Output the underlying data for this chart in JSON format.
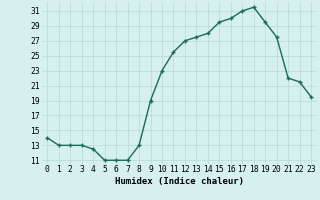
{
  "x": [
    0,
    1,
    2,
    3,
    4,
    5,
    6,
    7,
    8,
    9,
    10,
    11,
    12,
    13,
    14,
    15,
    16,
    17,
    18,
    19,
    20,
    21,
    22,
    23
  ],
  "y": [
    14,
    13,
    13,
    13,
    12.5,
    11,
    11,
    11,
    13,
    19,
    23,
    25.5,
    27,
    27.5,
    28,
    29.5,
    30,
    31,
    31.5,
    29.5,
    27.5,
    22,
    21.5,
    19.5
  ],
  "line_color": "#1a6b5a",
  "marker_color": "#1a6b5a",
  "bg_color": "#d6f0ef",
  "grid_color": "#b8d8d6",
  "xlabel": "Humidex (Indice chaleur)",
  "yticks": [
    11,
    13,
    15,
    17,
    19,
    21,
    23,
    25,
    27,
    29,
    31
  ],
  "xticks": [
    0,
    1,
    2,
    3,
    4,
    5,
    6,
    7,
    8,
    9,
    10,
    11,
    12,
    13,
    14,
    15,
    16,
    17,
    18,
    19,
    20,
    21,
    22,
    23
  ],
  "ylim": [
    10.5,
    32.2
  ],
  "xlim": [
    -0.5,
    23.5
  ],
  "axis_label_fontsize": 6.5,
  "tick_fontsize": 5.8,
  "linewidth": 1.0,
  "markersize": 2.2
}
